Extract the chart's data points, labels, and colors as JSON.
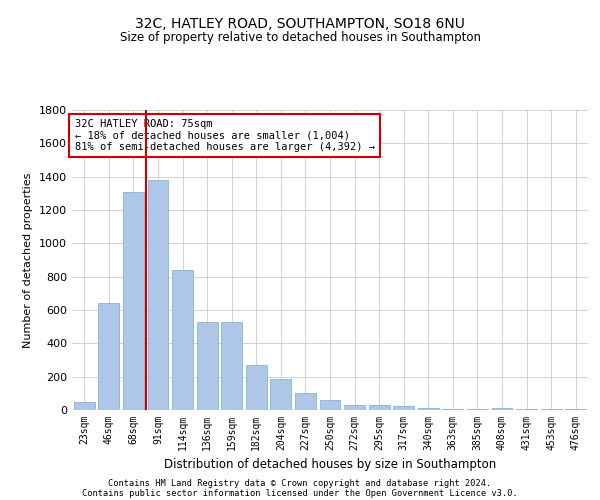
{
  "title_line1": "32C, HATLEY ROAD, SOUTHAMPTON, SO18 6NU",
  "title_line2": "Size of property relative to detached houses in Southampton",
  "xlabel": "Distribution of detached houses by size in Southampton",
  "ylabel": "Number of detached properties",
  "categories": [
    "23sqm",
    "46sqm",
    "68sqm",
    "91sqm",
    "114sqm",
    "136sqm",
    "159sqm",
    "182sqm",
    "204sqm",
    "227sqm",
    "250sqm",
    "272sqm",
    "295sqm",
    "317sqm",
    "340sqm",
    "363sqm",
    "385sqm",
    "408sqm",
    "431sqm",
    "453sqm",
    "476sqm"
  ],
  "values": [
    50,
    640,
    1310,
    1380,
    840,
    530,
    530,
    270,
    185,
    100,
    60,
    30,
    30,
    25,
    15,
    5,
    5,
    10,
    5,
    5,
    5
  ],
  "bar_color": "#aec6e8",
  "bar_edge_color": "#7aaac8",
  "vline_color": "#cc0000",
  "vline_index": 2,
  "annotation_text": "32C HATLEY ROAD: 75sqm\n← 18% of detached houses are smaller (1,004)\n81% of semi-detached houses are larger (4,392) →",
  "annotation_box_color": "#ffffff",
  "annotation_box_edge": "#cc0000",
  "ylim": [
    0,
    1800
  ],
  "yticks": [
    0,
    200,
    400,
    600,
    800,
    1000,
    1200,
    1400,
    1600,
    1800
  ],
  "footer1": "Contains HM Land Registry data © Crown copyright and database right 2024.",
  "footer2": "Contains public sector information licensed under the Open Government Licence v3.0.",
  "bg_color": "#ffffff",
  "grid_color": "#cccccc"
}
